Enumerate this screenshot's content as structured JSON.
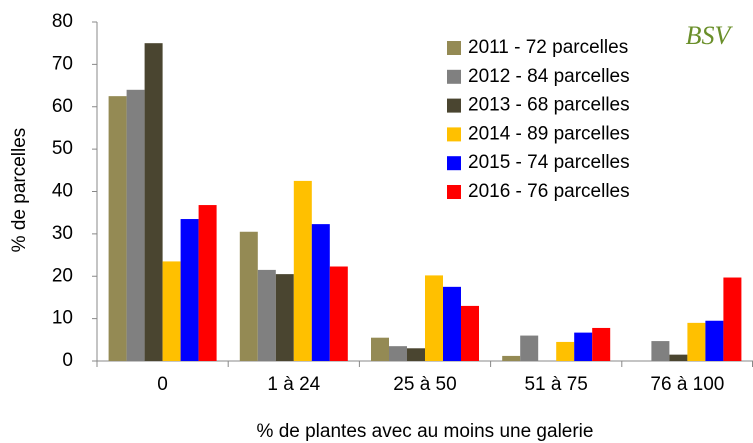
{
  "chart_data": {
    "type": "bar",
    "xlabel": "% de plantes avec au moins une galerie",
    "ylabel": "% de parcelles",
    "logo": "BSV",
    "categories": [
      "0",
      "1 à 24",
      "25 à 50",
      "51 à 75",
      "76 à 100"
    ],
    "series": [
      {
        "name": "2011 - 72 parcelles",
        "color": "#948a54",
        "values": [
          62.5,
          30.5,
          5.5,
          1.2,
          0
        ]
      },
      {
        "name": "2012 - 84 parcelles",
        "color": "#808080",
        "values": [
          64,
          21.5,
          3.5,
          6,
          4.7
        ]
      },
      {
        "name": "2013 - 68 parcelles",
        "color": "#4a4530",
        "values": [
          75,
          20.5,
          3,
          0,
          1.5
        ]
      },
      {
        "name": "2014 - 89 parcelles",
        "color": "#ffc000",
        "values": [
          23.5,
          42.5,
          20.2,
          4.5,
          9
        ]
      },
      {
        "name": "2015 - 74 parcelles",
        "color": "#0000ff",
        "values": [
          33.5,
          32.3,
          17.5,
          6.7,
          9.5
        ]
      },
      {
        "name": "2016 - 76 parcelles",
        "color": "#ff0000",
        "values": [
          36.8,
          22.3,
          13,
          7.8,
          19.7
        ]
      }
    ],
    "ylim": [
      0,
      80
    ],
    "yticks": [
      0,
      10,
      20,
      30,
      40,
      50,
      60,
      70,
      80
    ],
    "legend": "upper right"
  }
}
